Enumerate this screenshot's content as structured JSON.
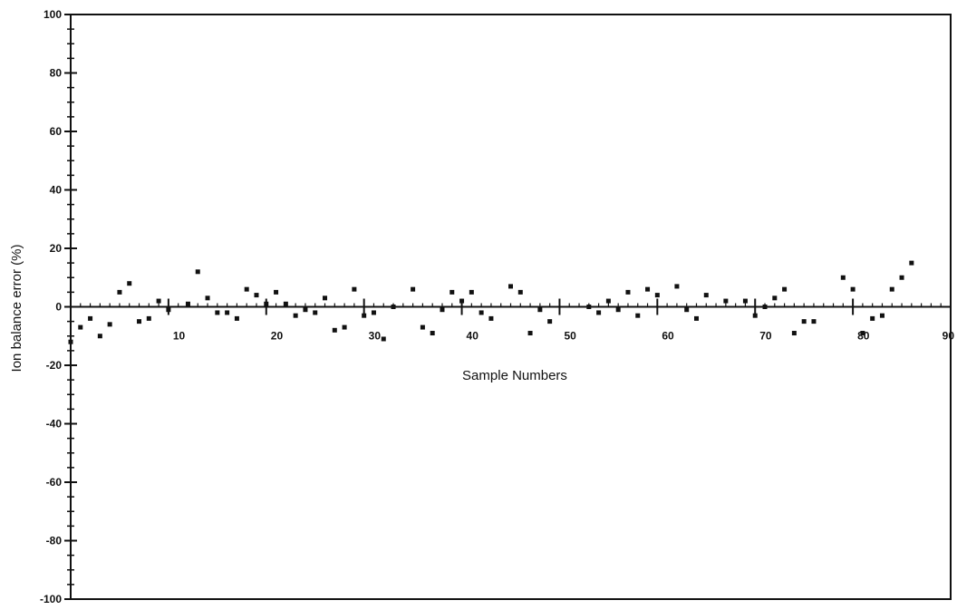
{
  "chart_data": {
    "type": "scatter",
    "title": "",
    "xlabel": "Sample Numbers",
    "ylabel": "Ion balance error (%)",
    "xlim": [
      0,
      90
    ],
    "ylim": [
      -100,
      100
    ],
    "x_ticks": [
      10,
      20,
      30,
      40,
      50,
      60,
      70,
      80,
      90
    ],
    "x_tick_labels": [
      "10",
      "20",
      "30",
      "40",
      "50",
      "60",
      "70",
      "80",
      "90"
    ],
    "y_ticks": [
      100,
      80,
      60,
      40,
      20,
      0,
      -20,
      -40,
      -60,
      -80,
      -100
    ],
    "y_tick_labels": [
      "100",
      "80",
      "60",
      "40",
      "20",
      "0",
      "-20",
      "-40",
      "-60",
      "-80",
      "-100"
    ],
    "grid": false,
    "marker_color": "#111111",
    "series": [
      {
        "points": [
          [
            0,
            -12
          ],
          [
            1,
            -7
          ],
          [
            2,
            -4
          ],
          [
            3,
            -10
          ],
          [
            4,
            -6
          ],
          [
            5,
            5
          ],
          [
            6,
            8
          ],
          [
            7,
            -5
          ],
          [
            8,
            -4
          ],
          [
            9,
            2
          ],
          [
            10,
            -1
          ],
          [
            12,
            1
          ],
          [
            13,
            12
          ],
          [
            14,
            3
          ],
          [
            15,
            -2
          ],
          [
            16,
            -2
          ],
          [
            17,
            -4
          ],
          [
            18,
            6
          ],
          [
            19,
            4
          ],
          [
            20,
            1
          ],
          [
            21,
            5
          ],
          [
            22,
            1
          ],
          [
            23,
            -3
          ],
          [
            24,
            -1
          ],
          [
            25,
            -2
          ],
          [
            26,
            3
          ],
          [
            27,
            -8
          ],
          [
            28,
            -7
          ],
          [
            29,
            6
          ],
          [
            30,
            -3
          ],
          [
            31,
            -2
          ],
          [
            32,
            -11
          ],
          [
            33,
            0
          ],
          [
            35,
            6
          ],
          [
            36,
            -7
          ],
          [
            37,
            -9
          ],
          [
            38,
            -1
          ],
          [
            39,
            5
          ],
          [
            40,
            2
          ],
          [
            41,
            5
          ],
          [
            42,
            -2
          ],
          [
            43,
            -4
          ],
          [
            45,
            7
          ],
          [
            46,
            5
          ],
          [
            47,
            -9
          ],
          [
            48,
            -1
          ],
          [
            49,
            -5
          ],
          [
            53,
            0
          ],
          [
            54,
            -2
          ],
          [
            55,
            2
          ],
          [
            56,
            -1
          ],
          [
            57,
            5
          ],
          [
            58,
            -3
          ],
          [
            59,
            6
          ],
          [
            60,
            4
          ],
          [
            62,
            7
          ],
          [
            63,
            -1
          ],
          [
            64,
            -4
          ],
          [
            65,
            4
          ],
          [
            67,
            2
          ],
          [
            69,
            2
          ],
          [
            70,
            -3
          ],
          [
            71,
            0
          ],
          [
            72,
            3
          ],
          [
            73,
            6
          ],
          [
            74,
            -9
          ],
          [
            75,
            -5
          ],
          [
            76,
            -5
          ],
          [
            79,
            10
          ],
          [
            80,
            6
          ],
          [
            81,
            -9
          ],
          [
            82,
            -4
          ],
          [
            83,
            -3
          ],
          [
            84,
            6
          ],
          [
            85,
            10
          ],
          [
            86,
            15
          ]
        ]
      }
    ]
  }
}
